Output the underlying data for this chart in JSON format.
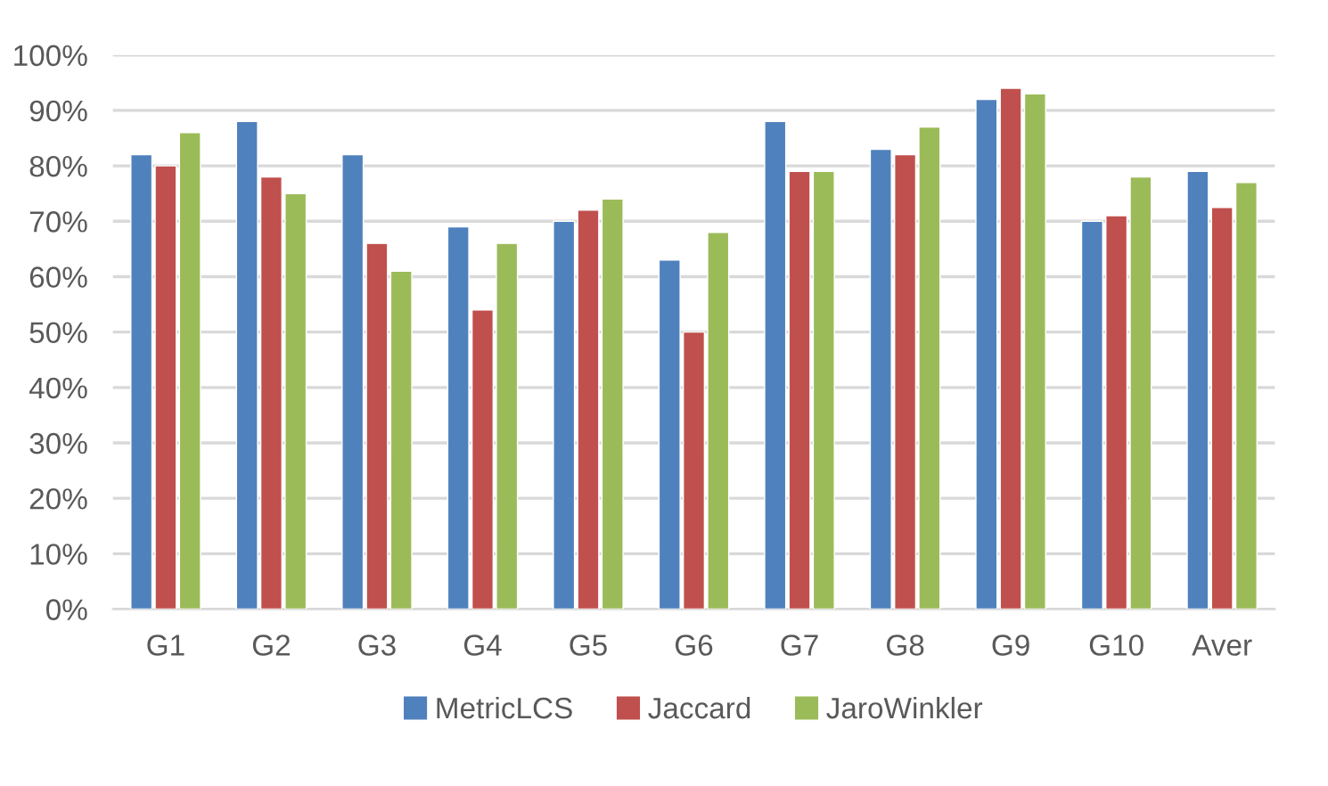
{
  "chart_data": {
    "type": "bar",
    "categories": [
      "G1",
      "G2",
      "G3",
      "G4",
      "G5",
      "G6",
      "G7",
      "G8",
      "G9",
      "G10",
      "Aver"
    ],
    "series": [
      {
        "name": "MetricLCS",
        "color": "#4f81bd",
        "values": [
          82,
          88,
          82,
          69,
          70,
          63,
          88,
          83,
          92,
          70,
          79
        ]
      },
      {
        "name": "Jaccard",
        "color": "#c0504d",
        "values": [
          80,
          78,
          66,
          54,
          72,
          50,
          79,
          82,
          94,
          71,
          72.5
        ]
      },
      {
        "name": "JaroWinkler",
        "color": "#9bbb59",
        "values": [
          86,
          75,
          61,
          66,
          74,
          68,
          79,
          87,
          93,
          78,
          77
        ]
      }
    ],
    "ylim": [
      0,
      100
    ],
    "yticks": [
      {
        "value": 0,
        "label": "0%"
      },
      {
        "value": 10,
        "label": "10%"
      },
      {
        "value": 20,
        "label": "20%"
      },
      {
        "value": 30,
        "label": "30%"
      },
      {
        "value": 40,
        "label": "40%"
      },
      {
        "value": 50,
        "label": "50%"
      },
      {
        "value": 60,
        "label": "60%"
      },
      {
        "value": 70,
        "label": "70%"
      },
      {
        "value": 80,
        "label": "80%"
      },
      {
        "value": 90,
        "label": "90%"
      },
      {
        "value": 100,
        "label": "100%"
      }
    ],
    "grid": "y",
    "legend": "bottom"
  }
}
